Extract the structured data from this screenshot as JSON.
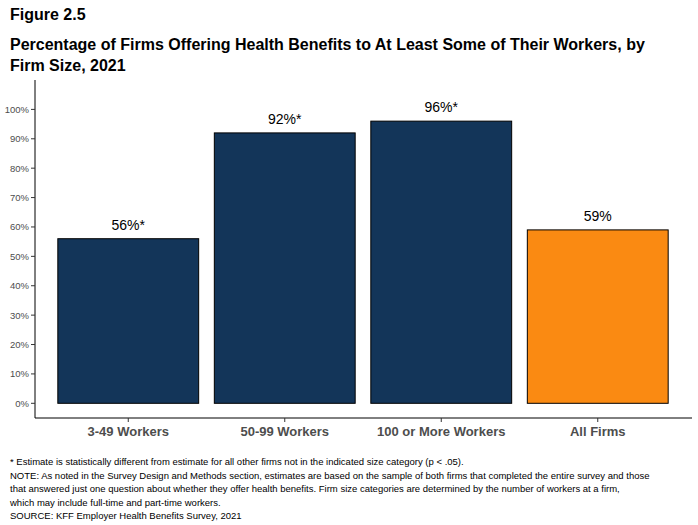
{
  "chart_data": {
    "type": "bar",
    "title": "Figure 2.5",
    "subtitle": "Percentage of Firms Offering Health Benefits to At Least Some of Their Workers, by Firm Size, 2021",
    "categories": [
      "3-49 Workers",
      "50-99 Workers",
      "100 or More Workers",
      "All Firms"
    ],
    "values": [
      56,
      92,
      96,
      59
    ],
    "value_labels": [
      "56%*",
      "92%*",
      "96%*",
      "59%"
    ],
    "colors": [
      "#133559",
      "#133559",
      "#133559",
      "#fa8a12"
    ],
    "data_labels": true,
    "grid": false,
    "ylim": [
      -5,
      110
    ],
    "yticks": [
      {
        "value": 0,
        "label": "0%"
      },
      {
        "value": 10,
        "label": "10%"
      },
      {
        "value": 20,
        "label": "20%"
      },
      {
        "value": 30,
        "label": "30%"
      },
      {
        "value": 40,
        "label": "40%"
      },
      {
        "value": 50,
        "label": "50%"
      },
      {
        "value": 60,
        "label": "60%"
      },
      {
        "value": 70,
        "label": "70%"
      },
      {
        "value": 80,
        "label": "80%"
      },
      {
        "value": 90,
        "label": "90%"
      },
      {
        "value": 100,
        "label": "100%"
      }
    ],
    "annotations": [
      "* Estimate is statistically different from estimate for all other firms not in the indicated size category (p < .05).",
      "NOTE: As noted in the Survey Design and Methods section, estimates are based on the sample of both firms that completed the entire survey and those",
      "that answered just one question about whether they offer health benefits. Firm size categories are determined by the number of workers at a firm,",
      "which may include full-time and part-time workers.",
      "SOURCE: KFF Employer Health Benefits Survey, 2021"
    ]
  }
}
